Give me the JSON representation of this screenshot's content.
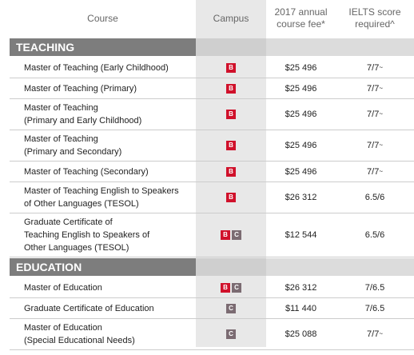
{
  "header": {
    "course": "Course",
    "campus": "Campus",
    "fee": [
      "2017 annual",
      "course fee*"
    ],
    "ielts": [
      "IELTS score",
      "required^"
    ]
  },
  "sections": [
    {
      "title": "TEACHING",
      "rows": [
        {
          "course": [
            "Master of Teaching (Early Childhood)"
          ],
          "campus": [
            "B"
          ],
          "fee": "$25 496",
          "ielts": "7/7",
          "ielts_note": "~"
        },
        {
          "course": [
            "Master of Teaching (Primary)"
          ],
          "campus": [
            "B"
          ],
          "fee": "$25 496",
          "ielts": "7/7",
          "ielts_note": "~"
        },
        {
          "course": [
            "Master of Teaching",
            "(Primary and Early Childhood)"
          ],
          "campus": [
            "B"
          ],
          "fee": "$25 496",
          "ielts": "7/7",
          "ielts_note": "~"
        },
        {
          "course": [
            "Master of Teaching",
            "(Primary and Secondary)"
          ],
          "campus": [
            "B"
          ],
          "fee": "$25 496",
          "ielts": "7/7",
          "ielts_note": "~"
        },
        {
          "course": [
            "Master of Teaching (Secondary)"
          ],
          "campus": [
            "B"
          ],
          "fee": "$25 496",
          "ielts": "7/7",
          "ielts_note": "~"
        },
        {
          "course": [
            "Master of Teaching English to Speakers",
            "of Other Languages (TESOL)"
          ],
          "campus": [
            "B"
          ],
          "fee": "$26 312",
          "ielts": "6.5/6"
        },
        {
          "course": [
            "Graduate Certificate of",
            "Teaching English to Speakers of",
            "Other Languages (TESOL)"
          ],
          "campus": [
            "B",
            "C"
          ],
          "fee": "$12 544",
          "ielts": "6.5/6"
        }
      ]
    },
    {
      "title": "EDUCATION",
      "rows": [
        {
          "course": [
            "Master of Education"
          ],
          "campus": [
            "B",
            "C"
          ],
          "fee": "$26 312",
          "ielts": "7/6.5"
        },
        {
          "course": [
            "Graduate Certificate of Education"
          ],
          "campus": [
            "C"
          ],
          "fee": "$11 440",
          "ielts": "7/6.5"
        },
        {
          "course": [
            "Master of Education",
            "(Special Educational Needs)"
          ],
          "campus": [
            "C"
          ],
          "fee": "$25 088",
          "ielts": "7/7",
          "ielts_note": "~"
        }
      ]
    }
  ]
}
